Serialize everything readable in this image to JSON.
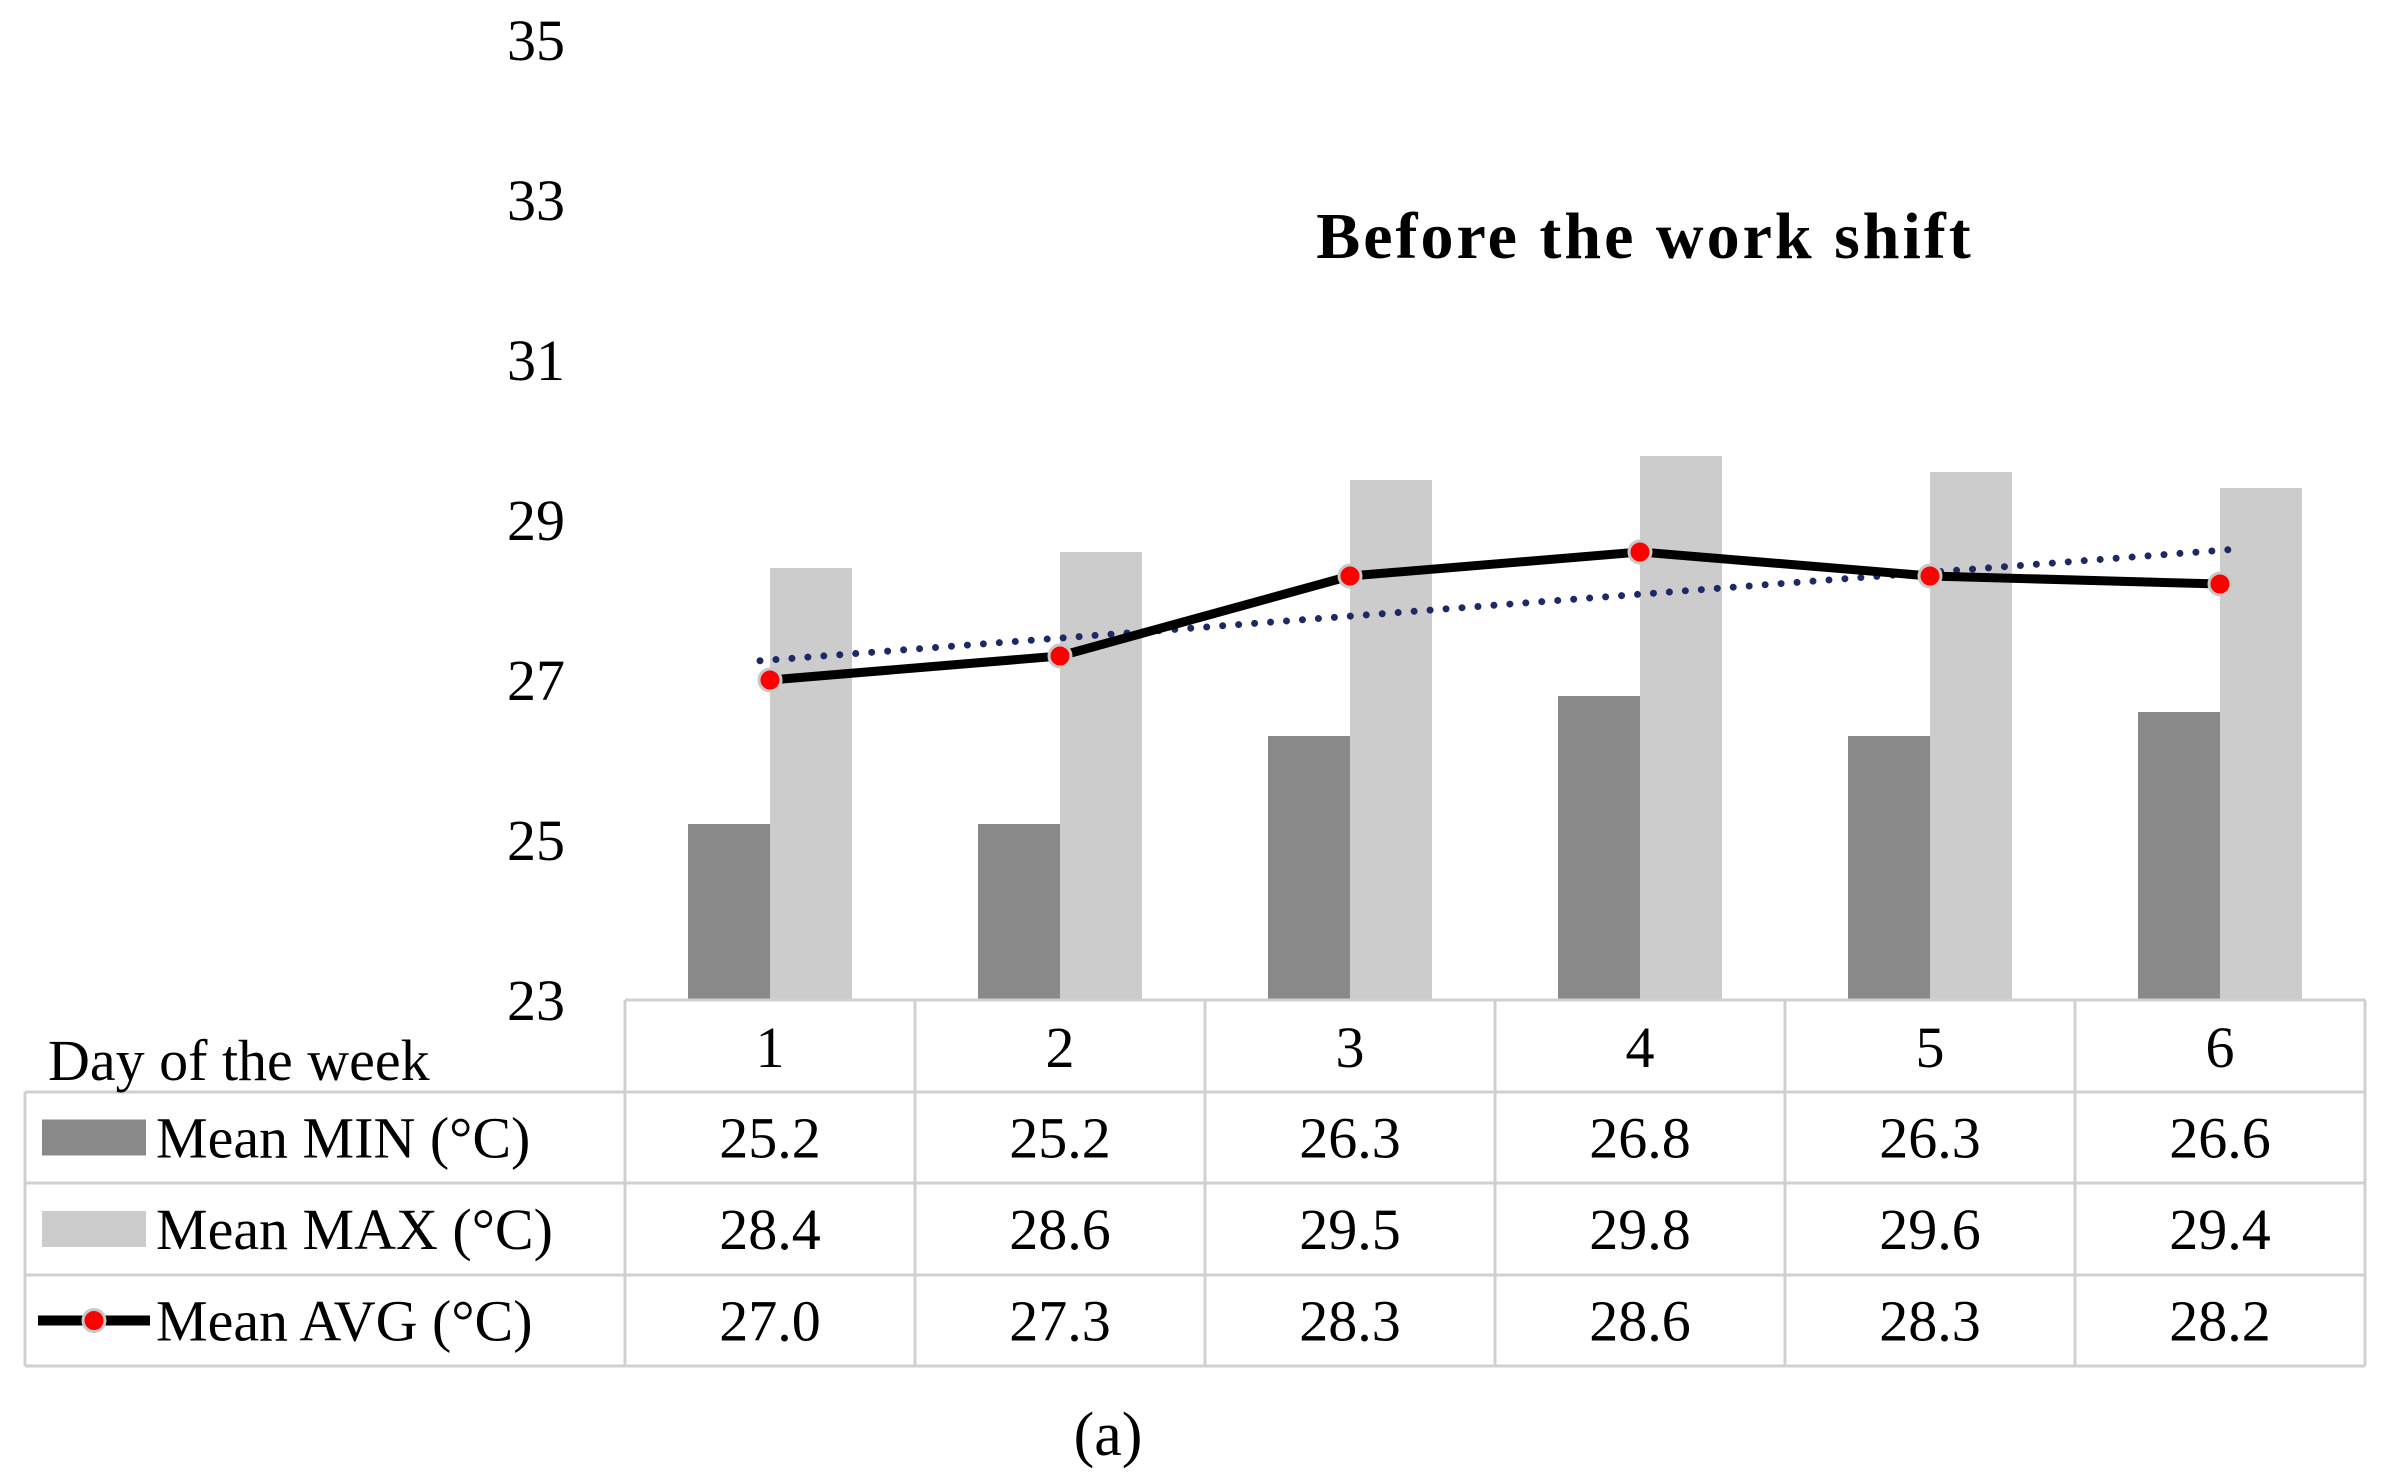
{
  "chart_data": {
    "type": "bar",
    "title": "Before the work shift",
    "row_header": "Day of the week",
    "categories": [
      "1",
      "2",
      "3",
      "4",
      "5",
      "6"
    ],
    "ylim": [
      23,
      35
    ],
    "yticks": [
      "35",
      "33",
      "31",
      "29",
      "27",
      "25",
      "23"
    ],
    "grid": false,
    "series": [
      {
        "name": "Mean MIN (°C)",
        "kind": "bar",
        "color": "#898989",
        "values": [
          25.2,
          25.2,
          26.3,
          26.8,
          26.3,
          26.6
        ],
        "labels": [
          "25.2",
          "25.2",
          "26.3",
          "26.8",
          "26.3",
          "26.6"
        ]
      },
      {
        "name": "Mean MAX (°C)",
        "kind": "bar",
        "color": "#cccccc",
        "values": [
          28.4,
          28.6,
          29.5,
          29.8,
          29.6,
          29.4
        ],
        "labels": [
          "28.4",
          "28.6",
          "29.5",
          "29.8",
          "29.6",
          "29.4"
        ]
      },
      {
        "name": "Mean AVG (°C)",
        "kind": "line",
        "color": "#000000",
        "marker_color": "#ff0000",
        "values": [
          27.0,
          27.3,
          28.3,
          28.6,
          28.3,
          28.2
        ],
        "labels": [
          "27.0",
          "27.3",
          "28.3",
          "28.6",
          "28.3",
          "28.2"
        ]
      }
    ],
    "trendline": {
      "color": "#1b2a66",
      "style": "dotted",
      "values": [
        27.25,
        27.52,
        27.8,
        28.07,
        28.35,
        28.62
      ]
    }
  },
  "caption": "(a)"
}
